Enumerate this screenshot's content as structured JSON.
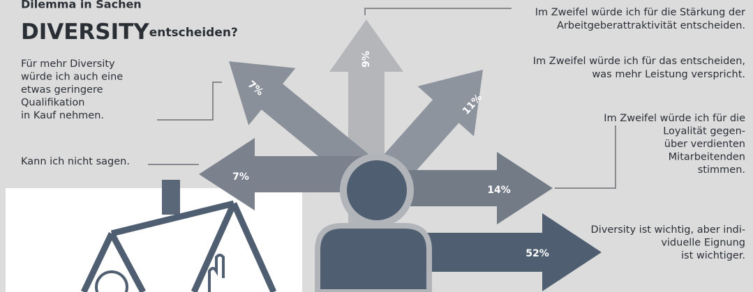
{
  "header": {
    "kicker": "Dilemma in Sachen",
    "title": "DIVERSITY",
    "title_suffix": "entscheiden?"
  },
  "options": [
    {
      "lines": [
        "Im Zweifel würde ich für die Stärkung der",
        "Arbeitgeberattraktivität entscheiden."
      ],
      "percent": "9%"
    },
    {
      "lines": [
        "Im Zweifel würde ich für das entscheiden,",
        "was mehr Leistung verspricht."
      ],
      "percent": "11%"
    },
    {
      "lines": [
        "Im Zweifel würde ich für die",
        "Loyalität gegen-",
        "über verdienten",
        "Mitarbeitenden",
        "stimmen."
      ],
      "percent": "14%"
    },
    {
      "lines": [
        "Diversity ist wichtig, aber indi-",
        "viduelle Eignung",
        "ist wichtiger."
      ],
      "percent": "52%"
    },
    {
      "lines": [
        "Für mehr Diversity",
        "würde ich auch eine",
        "etwas geringere",
        "Qualifikation",
        "in Kauf nehmen."
      ],
      "percent": "7%"
    },
    {
      "lines": [
        "Kann ich nicht sagen."
      ],
      "percent": "7%"
    }
  ]
}
